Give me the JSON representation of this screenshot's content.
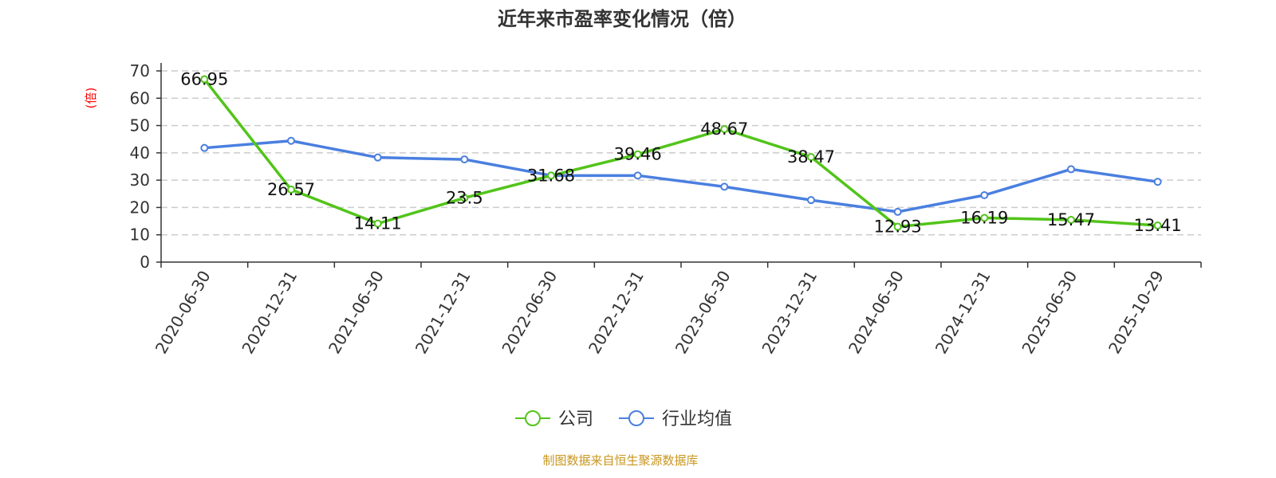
{
  "chart_data": {
    "type": "line",
    "title": "近年来市盈率变化情况（倍）",
    "ylabel": "(倍)",
    "xlabel": "",
    "ylim": [
      0,
      70
    ],
    "yticks": [
      0,
      10,
      20,
      30,
      40,
      50,
      60,
      70
    ],
    "grid": true,
    "legend_position": "bottom",
    "categories": [
      "2020-06-30",
      "2020-12-31",
      "2021-06-30",
      "2021-12-31",
      "2022-06-30",
      "2022-12-31",
      "2023-06-30",
      "2023-12-31",
      "2024-06-30",
      "2024-12-31",
      "2025-06-30",
      "2025-10-29"
    ],
    "series": [
      {
        "name": "公司",
        "color": "#52c41a",
        "show_labels": true,
        "values": [
          66.95,
          26.57,
          14.11,
          23.5,
          31.68,
          39.46,
          48.67,
          38.47,
          12.93,
          16.19,
          15.47,
          13.41
        ]
      },
      {
        "name": "行业均值",
        "color": "#4a7fe0",
        "show_labels": false,
        "values": [
          41.8,
          44.4,
          38.3,
          37.6,
          31.7,
          31.7,
          27.6,
          22.7,
          18.4,
          24.5,
          34.0,
          29.4
        ]
      }
    ]
  },
  "footer": {
    "source": "制图数据来自恒生聚源数据库"
  }
}
